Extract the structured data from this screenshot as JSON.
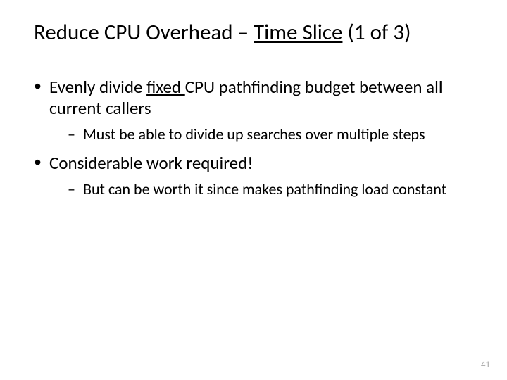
{
  "title_parts": {
    "prefix": "Reduce CPU Overhead – ",
    "underlined": "Time Slice",
    "suffix": " (1 of 3)"
  },
  "bullets": [
    {
      "text": {
        "pre": "Evenly divide ",
        "underlined": "fixed ",
        "post": "CPU pathfinding budget between all current callers"
      },
      "sub": [
        "Must be able to divide up searches over multiple steps"
      ]
    },
    {
      "text": {
        "pre": "Considerable work required!",
        "underlined": "",
        "post": ""
      },
      "sub": [
        "But can be worth it since makes pathfinding load constant"
      ]
    }
  ],
  "page_number": "41",
  "colors": {
    "background": "#ffffff",
    "text": "#000000",
    "page_number": "#a6a6a6"
  },
  "typography": {
    "title_fontsize": 31,
    "bullet_fontsize": 25,
    "subbullet_fontsize": 22,
    "pagenum_fontsize": 13,
    "font_family": "Calibri"
  }
}
